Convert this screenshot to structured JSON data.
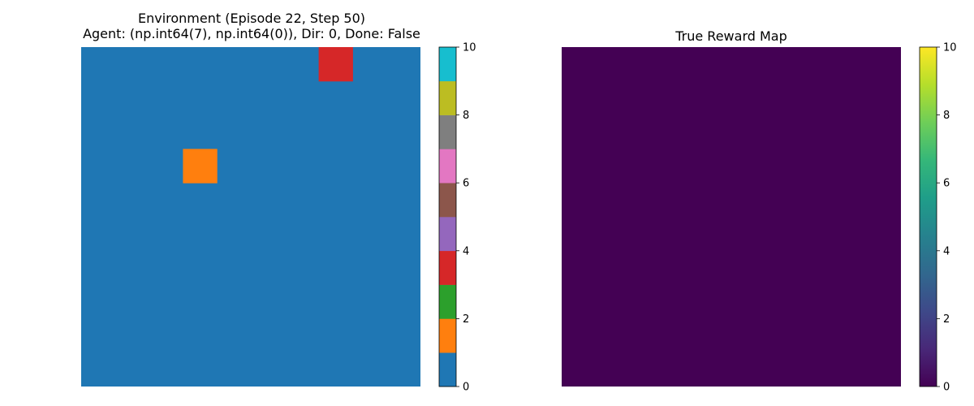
{
  "environment_panel": {
    "title_line1": "Environment (Episode 22, Step 50)",
    "title_line2": "Agent: (np.int64(7), np.int64(0)), Dir: 0, Done: False",
    "grid_size": 10,
    "background_value": 0,
    "cells": [
      {
        "row": 0,
        "col": 7,
        "value": 3,
        "color": "#d62728"
      },
      {
        "row": 3,
        "col": 3,
        "value": 1,
        "color": "#ff7f0e"
      }
    ],
    "colorbar": {
      "min": 0,
      "max": 10,
      "tick_values": [
        0,
        2,
        4,
        6,
        8,
        10
      ],
      "tick_labels": [
        "0",
        "2",
        "4",
        "6",
        "8",
        "10"
      ],
      "colors": [
        "#1f77b4",
        "#ff7f0e",
        "#2ca02c",
        "#d62728",
        "#9467bd",
        "#8c564b",
        "#e377c2",
        "#7f7f7f",
        "#bcbd22",
        "#17becf"
      ]
    }
  },
  "reward_panel": {
    "title": "True Reward Map",
    "fill_value": 0,
    "fill_color": "#440154",
    "colorbar": {
      "min": 0,
      "max": 10,
      "tick_values": [
        0,
        2,
        4,
        6,
        8,
        10
      ],
      "tick_labels": [
        "0",
        "2",
        "4",
        "6",
        "8",
        "10"
      ],
      "gradient_colors": [
        "#440154",
        "#482878",
        "#3e4989",
        "#31688e",
        "#26828e",
        "#1f9e89",
        "#35b779",
        "#6ece58",
        "#b5de2b",
        "#fde725"
      ]
    }
  }
}
